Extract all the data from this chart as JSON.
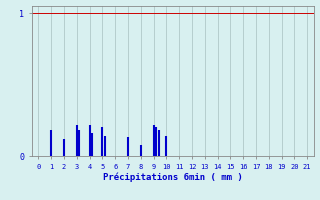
{
  "xlabel": "Précipitations 6min ( mm )",
  "xlim": [
    -0.5,
    21.5
  ],
  "ylim": [
    0,
    1.05
  ],
  "yticks": [
    0,
    1
  ],
  "xticks": [
    0,
    1,
    2,
    3,
    4,
    5,
    6,
    7,
    8,
    9,
    10,
    11,
    12,
    13,
    14,
    15,
    16,
    17,
    18,
    19,
    20,
    21
  ],
  "bar_positions": [
    1.0,
    2.0,
    3.0,
    3.2,
    4.0,
    4.2,
    5.0,
    5.2,
    7.0,
    8.0,
    9.0,
    9.2,
    9.4,
    10.0
  ],
  "bar_heights": [
    0.18,
    0.12,
    0.22,
    0.18,
    0.22,
    0.16,
    0.2,
    0.14,
    0.13,
    0.08,
    0.22,
    0.2,
    0.18,
    0.14
  ],
  "bar_color": "#0000cc",
  "bg_color": "#d8f0f0",
  "grid_color": "#b0c8c8",
  "axis_color": "#888888",
  "text_color": "#0000cc",
  "bar_width": 0.05,
  "hline_y": 1.0,
  "hline_color": "#cc0000"
}
